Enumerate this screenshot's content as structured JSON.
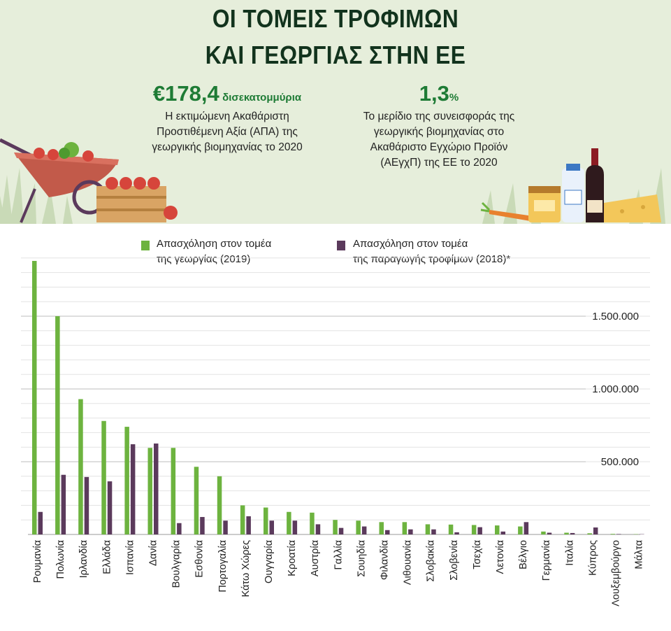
{
  "header": {
    "title_line1": "ΟΙ ΤΟΜΕΙΣ ΤΡΟΦΙΜΩΝ",
    "title_line2": "ΚΑΙ ΓΕΩΡΓΙΑΣ ΣΤΗΝ ΕΕ",
    "stat_left": {
      "value": "€178,4",
      "unit": "δισεκατομμύρια",
      "description": [
        "Η εκτιμώμενη Ακαθάριστη",
        "Προστιθέμενη Αξία (ΑΠΑ) της",
        "γεωργικής βιομηχανίας το 2020"
      ]
    },
    "stat_right": {
      "value": "1,3",
      "unit": "%",
      "description": [
        "Το μερίδιο της συνεισφοράς της",
        "γεωργικής βιομηχανίας στο",
        "Ακαθάριστο Εγχώριο Προϊόν",
        "(ΑΕγχΠ) της ΕΕ το 2020"
      ]
    }
  },
  "legend": {
    "agriculture": [
      "Απασχόληση στον τομέα",
      "της γεωργίας (2019)"
    ],
    "food": [
      "Απασχόληση στον τομέα",
      "της παραγωγής τροφίμων (2018)*"
    ]
  },
  "colors": {
    "agriculture": "#6db33f",
    "food": "#5b3a5c",
    "title": "#12331d",
    "accent": "#1e7b35"
  },
  "chart_data": {
    "type": "bar",
    "categories": [
      "Ρουμανία",
      "Πολωνία",
      "Ιρλανδία",
      "Ελλάδα",
      "Ισπανία",
      "Δανία",
      "Βουλγαρία",
      "Εσθονία",
      "Πορτογαλία",
      "Κάτω Χώρες",
      "Ουγγαρία",
      "Κροατία",
      "Αυστρία",
      "Γαλλία",
      "Σουηδία",
      "Φιλανδία",
      "Λιθουανία",
      "Σλοβακία",
      "Σλοβενία",
      "Τσεχία",
      "Λετονία",
      "Βέλγιο",
      "Γερμανία",
      "Ιταλία",
      "Κύπρος",
      "Λουξεμβούργο",
      "Μάλτα"
    ],
    "series": [
      {
        "name": "Απασχόληση στον τομέα της γεωργίας (2019)",
        "values": [
          1880000,
          1500000,
          930000,
          780000,
          740000,
          595000,
          595000,
          465000,
          400000,
          200000,
          185000,
          155000,
          150000,
          100000,
          95000,
          85000,
          85000,
          70000,
          68000,
          65000,
          62000,
          55000,
          20000,
          12000,
          8000,
          4000,
          2000
        ]
      },
      {
        "name": "Απασχόληση στον τομέα της παραγωγής τροφίμων (2018)*",
        "values": [
          155000,
          410000,
          395000,
          365000,
          620000,
          625000,
          78000,
          120000,
          95000,
          125000,
          95000,
          95000,
          70000,
          45000,
          55000,
          30000,
          35000,
          35000,
          15000,
          50000,
          20000,
          85000,
          12000,
          10000,
          48000,
          3000,
          2000
        ]
      }
    ],
    "yticks": [
      {
        "value": 500000,
        "label": "500.000"
      },
      {
        "value": 1000000,
        "label": "1.000.000"
      },
      {
        "value": 1500000,
        "label": "1.500.000"
      }
    ],
    "ylim": [
      0,
      1900000
    ],
    "title": "",
    "xlabel": "",
    "ylabel": "",
    "grid": true
  }
}
